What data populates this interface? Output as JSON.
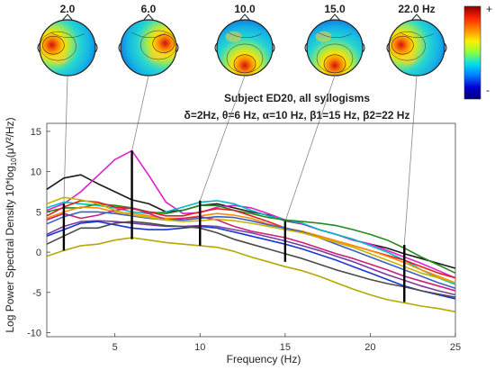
{
  "chart_data": {
    "type": "line",
    "title_line1": "Subject ED20, all syllogisms",
    "title_line2": "δ=2Hz, θ=6 Hz,  α=10 Hz,  β1=15 Hz,  β2=22 Hz",
    "xlabel": "Frequency (Hz)",
    "ylabel": "Log Power Spectral Density 10*log10(μV²/Hz)",
    "xlim": [
      1,
      25
    ],
    "ylim": [
      -10.5,
      16
    ],
    "xticks": [
      5,
      10,
      15,
      20,
      25
    ],
    "yticks": [
      -10,
      -5,
      0,
      5,
      10,
      15
    ],
    "x": [
      1,
      2,
      3,
      4,
      5,
      6,
      7,
      8,
      9,
      10,
      11,
      12,
      13,
      14,
      15,
      16,
      17,
      18,
      19,
      20,
      21,
      22,
      23,
      24,
      25
    ],
    "series": [
      {
        "color": "#1a1a1a",
        "values": [
          7.8,
          9.2,
          9.6,
          8.5,
          7.5,
          6.5,
          6.0,
          5.0,
          5.2,
          5.8,
          6.0,
          5.5,
          5.0,
          4.6,
          3.9,
          3.5,
          2.8,
          2.2,
          1.5,
          1.0,
          0.5,
          -0.2,
          -0.8,
          -1.4,
          -2.0
        ]
      },
      {
        "color": "#dd22cc",
        "values": [
          5.2,
          6.0,
          7.5,
          9.5,
          11.5,
          12.6,
          9.5,
          6.2,
          4.8,
          4.9,
          5.6,
          5.8,
          5.5,
          4.8,
          4.0,
          3.5,
          2.8,
          2.2,
          1.5,
          1.0,
          0.2,
          -0.6,
          -1.4,
          -2.3,
          -3.2
        ]
      },
      {
        "color": "#00b8c8",
        "values": [
          5.5,
          6.2,
          6.0,
          5.8,
          5.5,
          5.0,
          4.8,
          5.0,
          5.6,
          6.2,
          6.4,
          6.0,
          5.2,
          4.5,
          4.0,
          3.6,
          2.8,
          2.2,
          1.6,
          0.8,
          0.0,
          -1.0,
          -2.2,
          -3.2,
          -4.0
        ]
      },
      {
        "color": "#228b22",
        "values": [
          5.0,
          5.5,
          5.5,
          6.0,
          5.8,
          5.5,
          5.0,
          4.8,
          5.2,
          5.8,
          5.8,
          5.2,
          4.8,
          4.3,
          4.0,
          3.8,
          3.6,
          3.3,
          2.8,
          2.2,
          1.5,
          0.5,
          -0.6,
          -1.6,
          -2.6
        ]
      },
      {
        "color": "#e02020",
        "values": [
          4.5,
          5.6,
          6.4,
          6.2,
          5.6,
          5.4,
          5.0,
          4.5,
          4.5,
          5.0,
          5.4,
          5.2,
          4.5,
          3.8,
          3.0,
          2.5,
          2.0,
          1.4,
          0.8,
          0.2,
          -0.4,
          -1.0,
          -1.8,
          -2.6,
          -3.2
        ]
      },
      {
        "color": "#ff8c00",
        "values": [
          4.2,
          5.0,
          5.6,
          5.5,
          5.0,
          4.8,
          4.5,
          4.2,
          4.2,
          4.5,
          4.8,
          4.6,
          4.2,
          3.5,
          3.0,
          2.6,
          2.0,
          1.4,
          0.8,
          0.2,
          -0.5,
          -1.3,
          -2.2,
          -3.0,
          -3.8
        ]
      },
      {
        "color": "#cc1f7a",
        "values": [
          4.0,
          4.8,
          4.2,
          4.6,
          5.2,
          5.5,
          4.8,
          4.0,
          4.2,
          4.4,
          4.0,
          3.2,
          2.6,
          2.2,
          1.8,
          1.2,
          0.5,
          -0.2,
          -0.8,
          -1.5,
          -2.2,
          -3.0,
          -3.6,
          -4.2,
          -4.8
        ]
      },
      {
        "color": "#3b5fc4",
        "values": [
          3.5,
          4.4,
          5.0,
          5.0,
          4.8,
          4.5,
          4.2,
          4.0,
          4.0,
          4.2,
          4.4,
          4.3,
          3.9,
          3.4,
          3.0,
          2.5,
          1.8,
          1.0,
          0.2,
          -0.6,
          -1.4,
          -2.2,
          -3.0,
          -3.8,
          -4.5
        ]
      },
      {
        "color": "#c8b400",
        "values": [
          6.0,
          6.8,
          6.5,
          6.0,
          5.2,
          4.6,
          4.3,
          4.0,
          3.8,
          3.9,
          4.1,
          3.9,
          3.6,
          3.2,
          2.8,
          2.4,
          1.8,
          1.2,
          0.6,
          -0.2,
          -1.0,
          -1.8,
          -2.6,
          -3.2,
          -3.8
        ]
      },
      {
        "color": "#7a3c9c",
        "values": [
          2.2,
          3.2,
          3.8,
          3.9,
          3.8,
          3.6,
          3.4,
          3.2,
          3.2,
          3.3,
          3.2,
          2.8,
          2.4,
          1.9,
          1.4,
          0.8,
          0.2,
          -0.5,
          -1.2,
          -2.0,
          -2.8,
          -3.5,
          -4.2,
          -4.8,
          -5.3
        ]
      },
      {
        "color": "#1a35d6",
        "values": [
          2.0,
          2.8,
          3.6,
          3.8,
          3.4,
          3.0,
          2.8,
          2.8,
          3.0,
          3.2,
          3.0,
          2.5,
          2.0,
          1.5,
          1.0,
          0.4,
          -0.3,
          -1.0,
          -1.8,
          -2.6,
          -3.4,
          -4.2,
          -4.8,
          -5.3,
          -5.8
        ]
      },
      {
        "color": "#4a4a4a",
        "values": [
          1.0,
          2.0,
          3.0,
          3.0,
          3.6,
          3.8,
          3.6,
          3.3,
          3.2,
          3.0,
          2.4,
          1.6,
          1.0,
          0.4,
          -0.2,
          -0.8,
          -1.5,
          -2.2,
          -2.8,
          -3.4,
          -3.9,
          -4.3,
          -4.8,
          -5.2,
          -5.6
        ]
      },
      {
        "color": "#b5a800",
        "values": [
          -0.5,
          0.2,
          0.8,
          1.0,
          1.5,
          1.8,
          1.5,
          1.2,
          1.0,
          0.8,
          0.6,
          0.1,
          -0.6,
          -1.2,
          -1.8,
          -2.3,
          -3.0,
          -3.8,
          -4.6,
          -5.3,
          -5.9,
          -6.3,
          -6.7,
          -7.0,
          -7.4
        ]
      }
    ],
    "markers": [
      {
        "x": 2,
        "ymin": 0.2,
        "ymax": 6.0
      },
      {
        "x": 6,
        "ymin": 1.6,
        "ymax": 12.6
      },
      {
        "x": 10,
        "ymin": 0.8,
        "ymax": 6.4
      },
      {
        "x": 15,
        "ymin": -1.2,
        "ymax": 3.8
      },
      {
        "x": 22,
        "ymin": -6.2,
        "ymax": 0.9
      }
    ],
    "topomaps": [
      {
        "label": "2.0",
        "freq": 2,
        "hot": "left"
      },
      {
        "label": "6.0",
        "freq": 6,
        "hot": "right"
      },
      {
        "label": "10.0",
        "freq": 10,
        "hot": "bottom"
      },
      {
        "label": "15.0",
        "freq": 15,
        "hot": "bottom"
      },
      {
        "label": "22.0 Hz",
        "freq": 22,
        "hot": "left"
      }
    ],
    "colorbar": {
      "max_label": "+",
      "min_label": "-",
      "colors": [
        "#8b0000",
        "#ff2200",
        "#ff8800",
        "#ffee00",
        "#88ff44",
        "#00ddee",
        "#0077ff",
        "#0000cc",
        "#00007a"
      ]
    },
    "grid": false
  }
}
